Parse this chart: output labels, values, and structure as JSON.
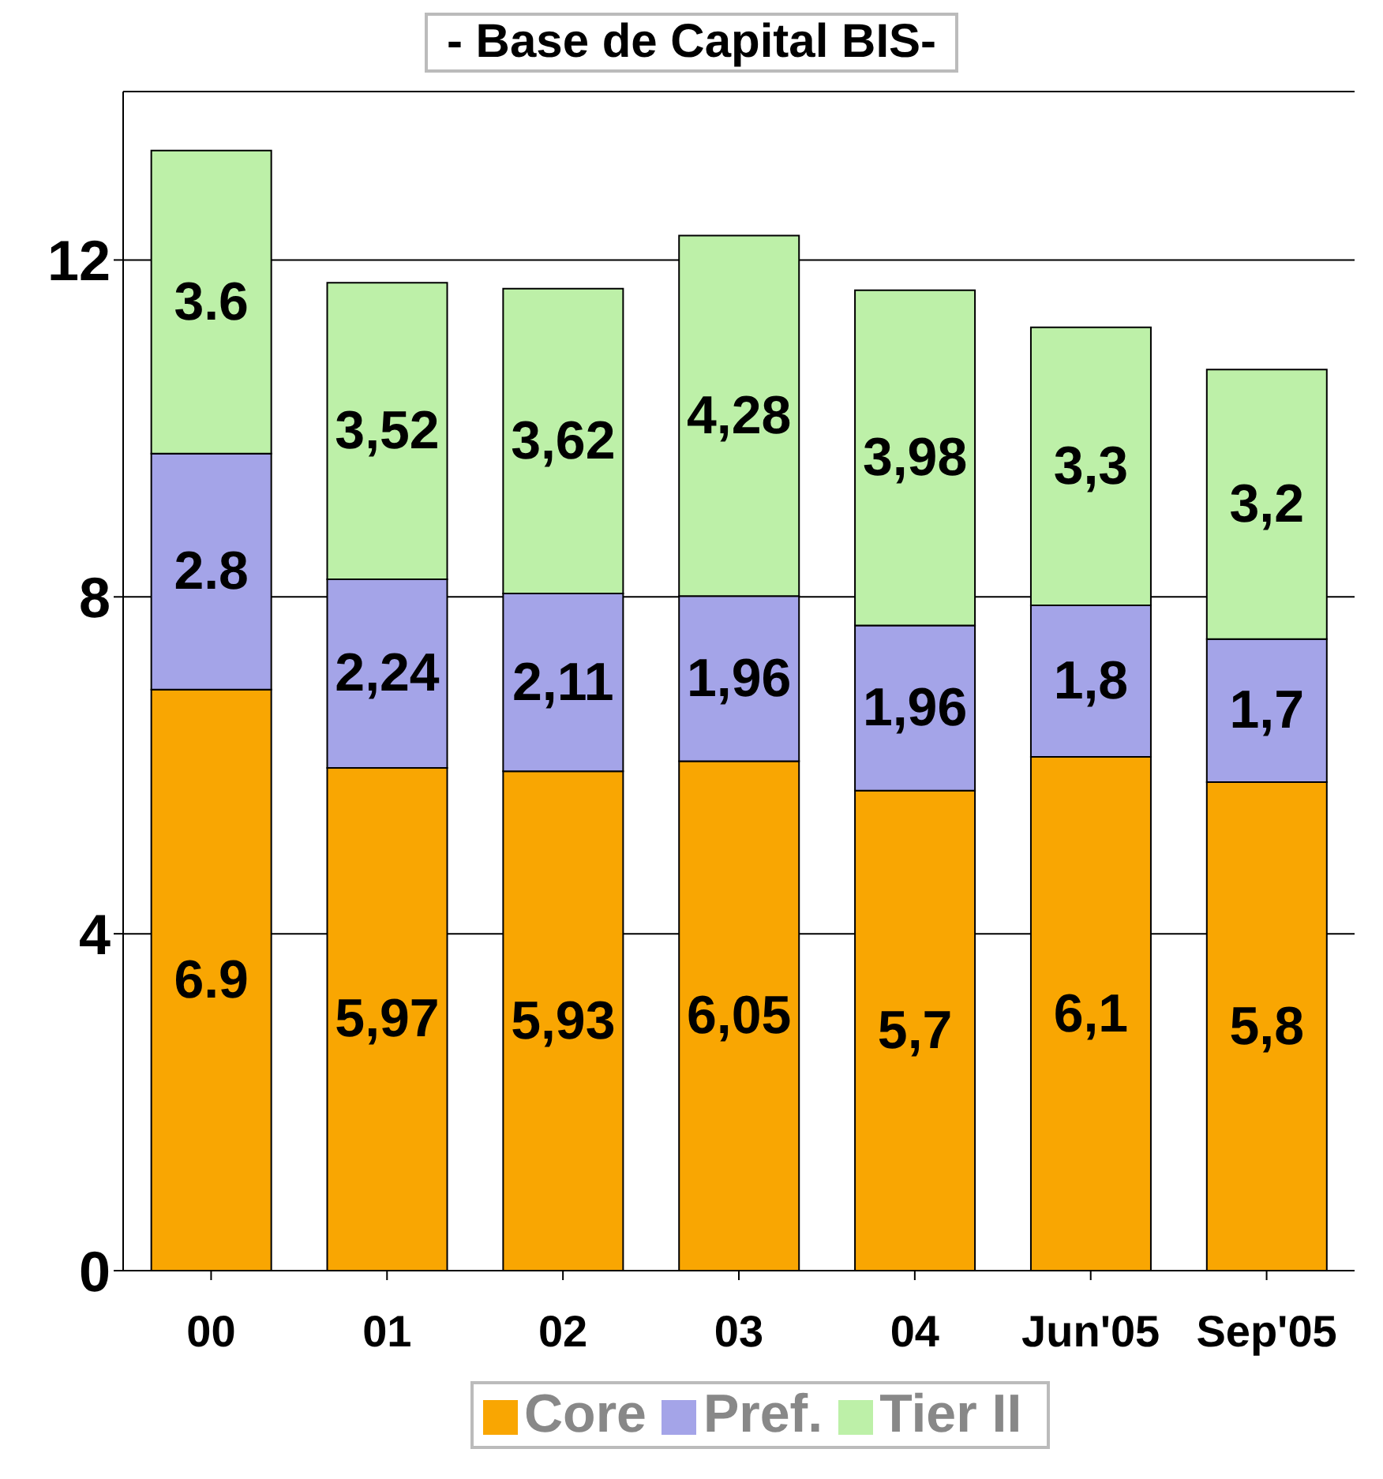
{
  "chart_data": {
    "type": "bar",
    "title": "- Base de Capital BIS-",
    "categories": [
      "00",
      "01",
      "02",
      "03",
      "04",
      "Jun'05",
      "Sep'05"
    ],
    "stacked": true,
    "ylim": [
      0,
      14
    ],
    "yticks": [
      0,
      4,
      8,
      12
    ],
    "grid": "y",
    "legend": "bottom",
    "series": [
      {
        "name": "Core",
        "color": "#f9a602",
        "values": [
          6.9,
          5.97,
          5.93,
          6.05,
          5.7,
          6.1,
          5.8
        ],
        "value_labels": [
          "6.9",
          "5,97",
          "5,93",
          "6,05",
          "5,7",
          "6,1",
          "5,8"
        ]
      },
      {
        "name": "Pref.",
        "color": "#a4a4e8",
        "values": [
          2.8,
          2.24,
          2.11,
          1.96,
          1.96,
          1.8,
          1.7
        ],
        "value_labels": [
          "2.8",
          "2,24",
          "2,11",
          "1,96",
          "1,96",
          "1,8",
          "1,7"
        ]
      },
      {
        "name": "Tier II",
        "color": "#bdf0a8",
        "values": [
          3.6,
          3.52,
          3.62,
          4.28,
          3.98,
          3.3,
          3.2
        ],
        "value_labels": [
          "3.6",
          "3,52",
          "3,62",
          "4,28",
          "3,98",
          "3,3",
          "3,2"
        ]
      }
    ]
  }
}
